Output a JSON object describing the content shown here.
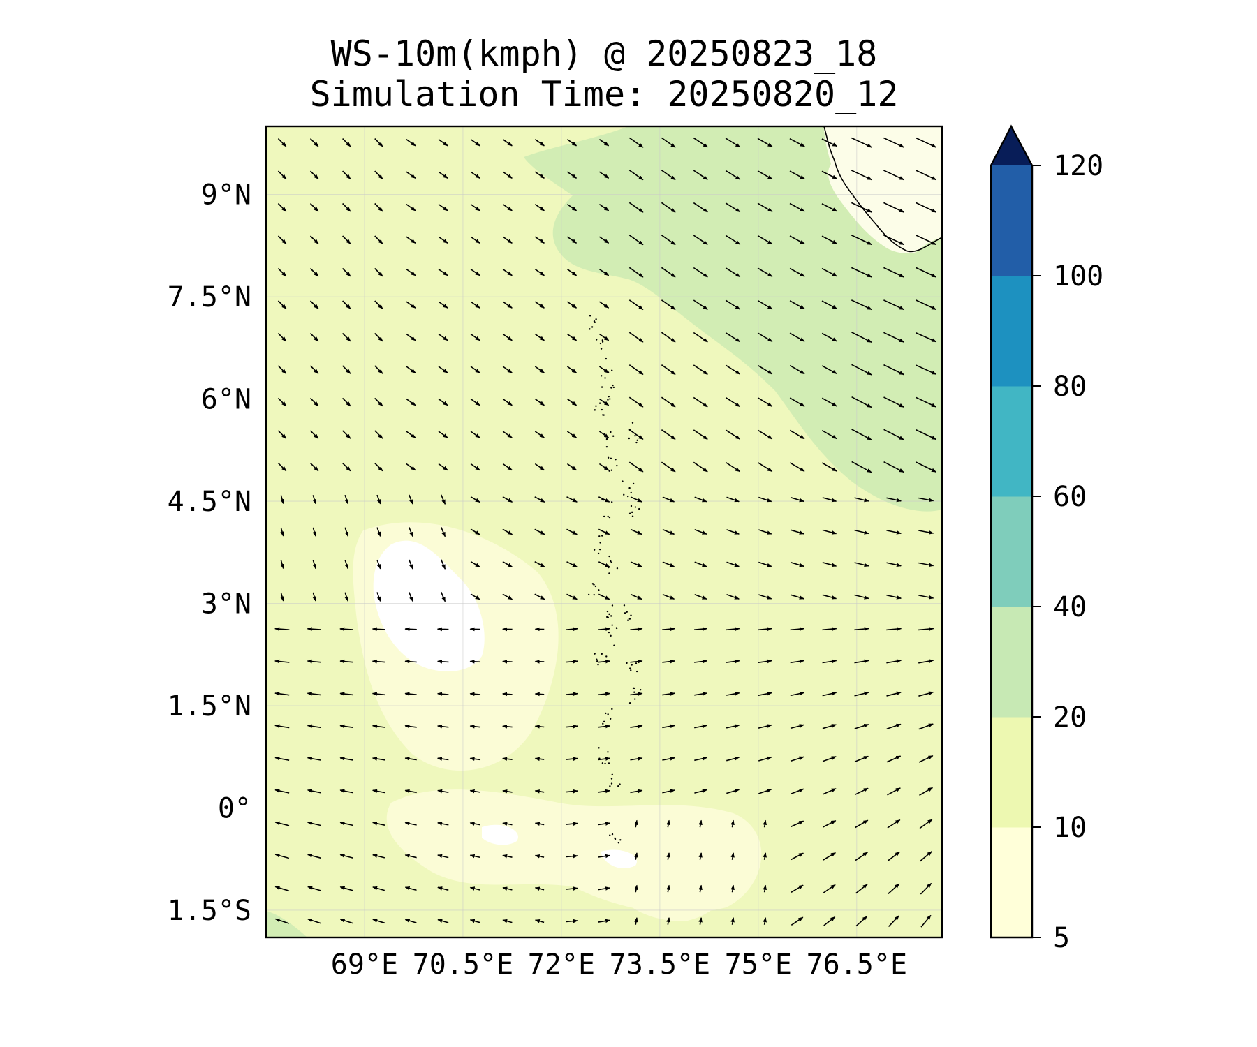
{
  "title_line1": "WS-10m(kmph) @ 20250823_18",
  "title_line2": "Simulation Time: 20250820_12",
  "map": {
    "lon_range": [
      67.5,
      77.8
    ],
    "lat_range": [
      -1.9,
      10.0
    ],
    "lon_ticks": [
      {
        "value": 69,
        "label": "69°E"
      },
      {
        "value": 70.5,
        "label": "70.5°E"
      },
      {
        "value": 72,
        "label": "72°E"
      },
      {
        "value": 73.5,
        "label": "73.5°E"
      },
      {
        "value": 75,
        "label": "75°E"
      },
      {
        "value": 76.5,
        "label": "76.5°E"
      }
    ],
    "lat_ticks": [
      {
        "value": 9,
        "label": "9°N"
      },
      {
        "value": 7.5,
        "label": "7.5°N"
      },
      {
        "value": 6,
        "label": "6°N"
      },
      {
        "value": 4.5,
        "label": "4.5°N"
      },
      {
        "value": 3,
        "label": "3°N"
      },
      {
        "value": 1.5,
        "label": "1.5°N"
      },
      {
        "value": 0,
        "label": "0°"
      },
      {
        "value": -1.5,
        "label": "1.5°S"
      }
    ]
  },
  "colorbar": {
    "levels": [
      5,
      10,
      20,
      40,
      60,
      80,
      100,
      120
    ],
    "labels": [
      "5",
      "10",
      "20",
      "40",
      "60",
      "80",
      "100",
      "120"
    ],
    "colors": [
      "#ffffd9",
      "#edf8b1",
      "#c7e9b4",
      "#7fcdbb",
      "#41b6c4",
      "#1d91c0",
      "#225ea8",
      "#0c2c84"
    ],
    "extend_color": "#081d58"
  },
  "colors": {
    "ocean_base": "#eff8bd",
    "calm": "#ffffff",
    "light": "#fbfcd6",
    "strong": "#d2edb4",
    "land": "#fcfde8"
  }
}
